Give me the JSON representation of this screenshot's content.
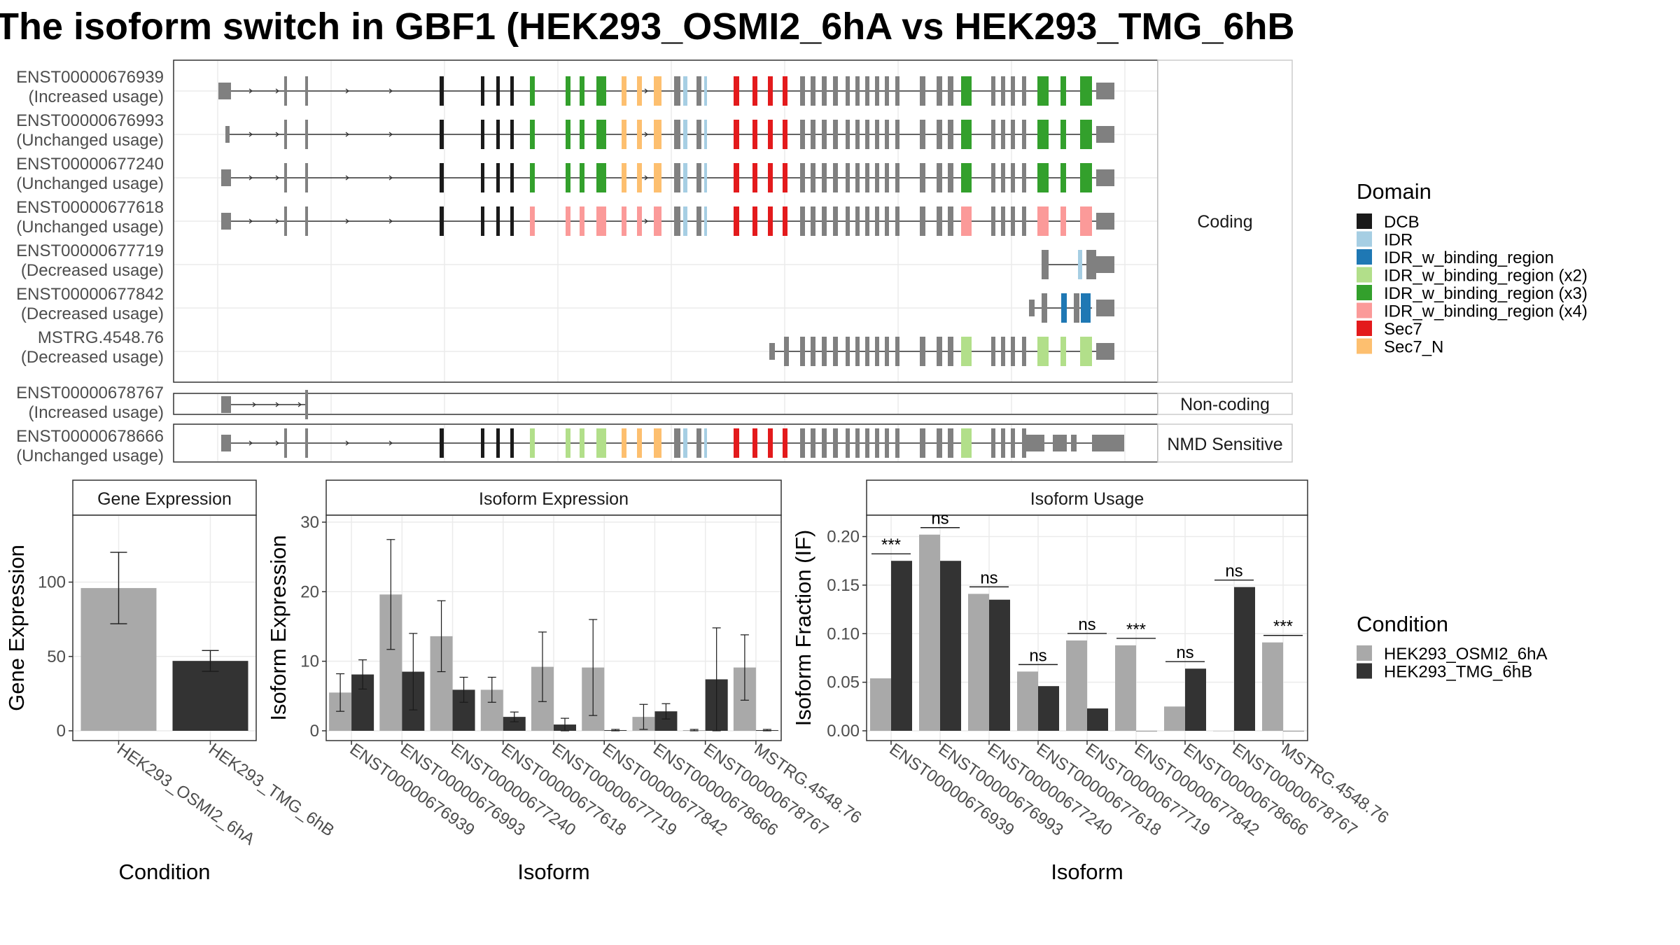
{
  "title": "The isoform switch in GBF1 (HEK293_OSMI2_6hA vs HEK293_TMG_6hB",
  "colors": {
    "DCB": "#1a1a1a",
    "IDR": "#a6cee3",
    "IDR_w_binding_region": "#1f78b4",
    "IDR_w_binding_region (x2)": "#b2df8a",
    "IDR_w_binding_region (x3)": "#33a02c",
    "IDR_w_binding_region (x4)": "#fb9a99",
    "Sec7": "#e31a1c",
    "Sec7_N": "#fdbf6f",
    "none": "#808080",
    "cond1": "#a9a9a9",
    "cond2": "#333333"
  },
  "structure": {
    "groups": [
      {
        "label": "Coding",
        "transcripts": [
          {
            "id": "ENST00000676939",
            "usage": "(Increased usage)"
          },
          {
            "id": "ENST00000676993",
            "usage": "(Unchanged usage)"
          },
          {
            "id": "ENST00000677240",
            "usage": "(Unchanged usage)"
          },
          {
            "id": "ENST00000677618",
            "usage": "(Unchanged usage)"
          },
          {
            "id": "ENST00000677719",
            "usage": "(Decreased usage)"
          },
          {
            "id": "ENST00000677842",
            "usage": "(Decreased usage)"
          },
          {
            "id": "MSTRG.4548.76",
            "usage": "(Decreased usage)"
          }
        ]
      },
      {
        "label": "Non-coding",
        "transcripts": [
          {
            "id": "ENST00000678767",
            "usage": "(Increased usage)"
          }
        ]
      },
      {
        "label": "NMD Sensitive",
        "transcripts": [
          {
            "id": "ENST00000678666",
            "usage": "(Unchanged usage)"
          }
        ]
      }
    ]
  },
  "legend_domain": {
    "title": "Domain",
    "items": [
      {
        "label": "DCB",
        "color": "#1a1a1a"
      },
      {
        "label": "IDR",
        "color": "#a6cee3"
      },
      {
        "label": "IDR_w_binding_region",
        "color": "#1f78b4"
      },
      {
        "label": "IDR_w_binding_region (x2)",
        "color": "#b2df8a"
      },
      {
        "label": "IDR_w_binding_region (x3)",
        "color": "#33a02c"
      },
      {
        "label": "IDR_w_binding_region (x4)",
        "color": "#fb9a99"
      },
      {
        "label": "Sec7",
        "color": "#e31a1c"
      },
      {
        "label": "Sec7_N",
        "color": "#fdbf6f"
      }
    ]
  },
  "legend_condition": {
    "title": "Condition",
    "items": [
      {
        "label": "HEK293_OSMI2_6hA",
        "color": "#a9a9a9"
      },
      {
        "label": "HEK293_TMG_6hB",
        "color": "#333333"
      }
    ]
  },
  "chart_data": [
    {
      "type": "bar",
      "title": "Gene Expression",
      "xlabel": "Condition",
      "ylabel": "Gene Expression",
      "categories": [
        "HEK293_OSMI2_6hA",
        "HEK293_TMG_6hB"
      ],
      "values": [
        96,
        47
      ],
      "errors": [
        [
          72,
          120
        ],
        [
          40,
          54
        ]
      ],
      "ylim": [
        0,
        145
      ],
      "yticks": [
        0,
        50,
        100
      ]
    },
    {
      "type": "bar",
      "title": "Isoform Expression",
      "xlabel": "Isoform",
      "ylabel": "Isoform Expression",
      "categories": [
        "ENST00000676939",
        "ENST00000676993",
        "ENST00000677240",
        "ENST00000677618",
        "ENST00000677719",
        "ENST00000677842",
        "ENST00000678666",
        "ENST00000678767",
        "MSTRG.4548.76"
      ],
      "series": [
        {
          "name": "HEK293_OSMI2_6hA",
          "values": [
            5.5,
            19.6,
            13.6,
            5.9,
            9.2,
            9.1,
            2.0,
            0.1,
            9.1
          ],
          "errors": [
            [
              2.8,
              8.2
            ],
            [
              11.7,
              27.5
            ],
            [
              8.5,
              18.7
            ],
            [
              4.1,
              7.7
            ],
            [
              4.2,
              14.2
            ],
            [
              2.2,
              16.0
            ],
            [
              0.2,
              3.8
            ],
            [
              0.0,
              0.2
            ],
            [
              4.4,
              13.8
            ]
          ]
        },
        {
          "name": "HEK293_TMG_6hB",
          "values": [
            8.1,
            8.5,
            5.9,
            2.0,
            0.9,
            0.1,
            2.8,
            7.4,
            0.1
          ],
          "errors": [
            [
              6.0,
              10.2
            ],
            [
              3.0,
              14.0
            ],
            [
              4.1,
              7.7
            ],
            [
              1.3,
              2.7
            ],
            [
              0.0,
              1.8
            ],
            [
              0.0,
              0.2
            ],
            [
              1.7,
              3.9
            ],
            [
              0.0,
              14.8
            ],
            [
              0.0,
              0.2
            ]
          ]
        }
      ],
      "ylim": [
        0,
        31
      ],
      "yticks": [
        0,
        10,
        20,
        30
      ]
    },
    {
      "type": "bar",
      "title": "Isoform Usage",
      "xlabel": "Isoform",
      "ylabel": "Isoform Fraction (IF)",
      "categories": [
        "ENST00000676939",
        "ENST00000676993",
        "ENST00000677240",
        "ENST00000677618",
        "ENST00000677719",
        "ENST00000677842",
        "ENST00000678666",
        "ENST00000678767",
        "MSTRG.4548.76"
      ],
      "series": [
        {
          "name": "HEK293_OSMI2_6hA",
          "values": [
            0.054,
            0.202,
            0.141,
            0.061,
            0.093,
            0.088,
            0.025,
            0.0,
            0.091
          ]
        },
        {
          "name": "HEK293_TMG_6hB",
          "values": [
            0.175,
            0.175,
            0.135,
            0.046,
            0.023,
            0.0,
            0.064,
            0.148,
            0.0
          ]
        }
      ],
      "significance": [
        "***",
        "ns",
        "ns",
        "ns",
        "ns",
        "***",
        "ns",
        "ns",
        "***"
      ],
      "ylim": [
        0,
        0.222
      ],
      "yticks": [
        "0.00",
        "0.05",
        "0.10",
        "0.15",
        "0.20"
      ]
    }
  ]
}
